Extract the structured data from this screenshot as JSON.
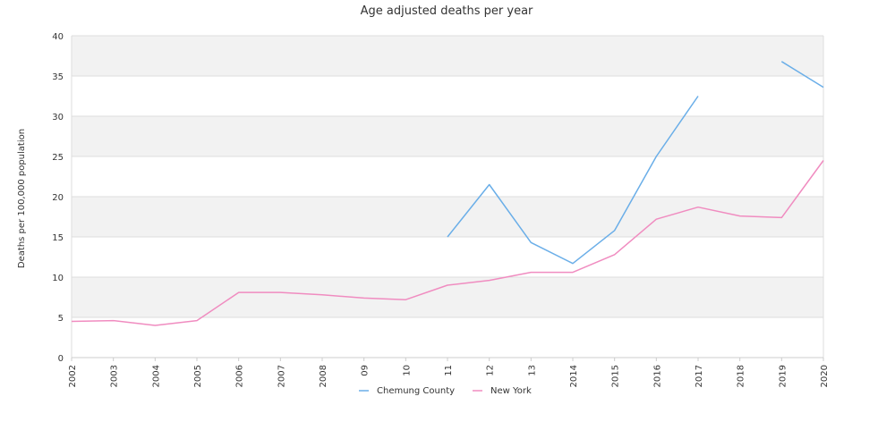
{
  "chart_data": {
    "type": "line",
    "title": "Age adjusted deaths per year",
    "ylabel": "Deaths per 100,000 population",
    "xlabel": "",
    "categories": [
      "2002",
      "2003",
      "2004",
      "2005",
      "2006",
      "2007",
      "2008",
      "09",
      "10",
      "11",
      "12",
      "13",
      "2014",
      "2015",
      "2016",
      "2017",
      "2018",
      "2019",
      "2020"
    ],
    "ylim": [
      0,
      40
    ],
    "yticks": [
      0,
      5,
      10,
      15,
      20,
      25,
      30,
      35,
      40
    ],
    "grid": "horizontal alternating bands",
    "legend": "bottom-center",
    "series": [
      {
        "name": "Chemung County",
        "color": "#6aaee8",
        "values": [
          null,
          null,
          null,
          null,
          null,
          null,
          null,
          null,
          null,
          15.0,
          21.5,
          14.3,
          11.7,
          15.8,
          25.0,
          32.5,
          null,
          36.8,
          33.6
        ]
      },
      {
        "name": "New York",
        "color": "#f08cc0",
        "values": [
          4.5,
          4.6,
          4.0,
          4.6,
          8.1,
          8.1,
          7.8,
          7.4,
          7.2,
          9.0,
          9.6,
          10.6,
          10.6,
          12.8,
          17.2,
          18.7,
          17.6,
          17.4,
          24.5
        ]
      }
    ]
  }
}
